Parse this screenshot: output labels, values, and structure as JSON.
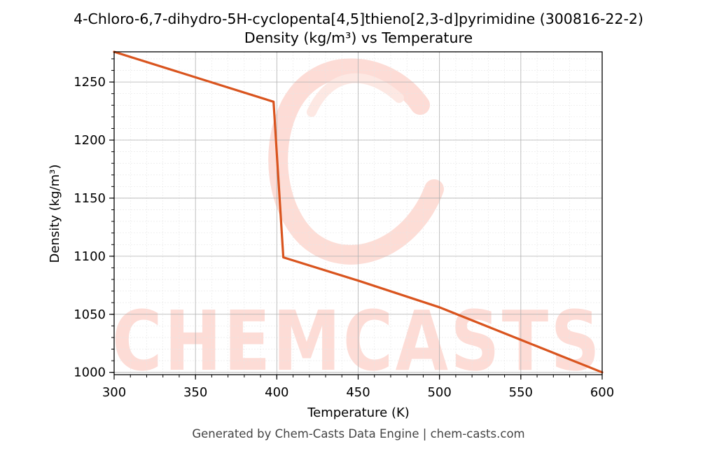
{
  "chart_data": {
    "type": "line",
    "title": "4-Chloro-6,7-dihydro-5H-cyclopenta[4,5]thieno[2,3-d]pyrimidine (300816-22-2)",
    "subtitle": "Density (kg/m³) vs Temperature",
    "xlabel": "Temperature (K)",
    "ylabel": "Density (kg/m³)",
    "xlim": [
      300,
      600
    ],
    "ylim": [
      998,
      1276
    ],
    "xticks": [
      300,
      350,
      400,
      450,
      500,
      550,
      600
    ],
    "yticks": [
      1000,
      1050,
      1100,
      1150,
      1200,
      1250
    ],
    "grid": true,
    "series": [
      {
        "color": "#d9541e",
        "x": [
          300,
          398,
          404,
          450,
          500,
          550,
          600
        ],
        "y": [
          1276,
          1233,
          1099,
          1079,
          1056,
          1028,
          1000
        ]
      }
    ]
  },
  "footer": "Generated by Chem-Casts Data Engine | chem-casts.com",
  "watermark": "CHEMCASTS"
}
